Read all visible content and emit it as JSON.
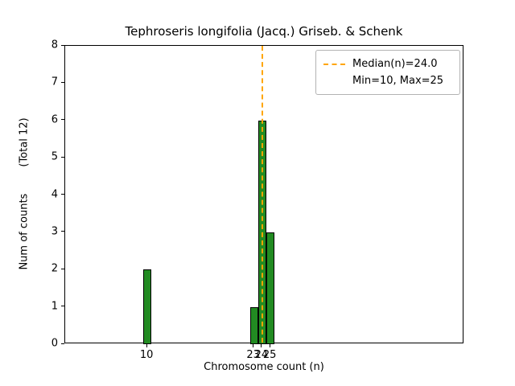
{
  "figure": {
    "title": "Tephroseris longifolia (Jacq.) Griseb. & Schenk",
    "xlabel": "Chromosome count (n)",
    "ylabel": "Num of counts        (Total 12)"
  },
  "legend": {
    "items": [
      {
        "label": "Median(n)=24.0",
        "has_line": true,
        "line_color": "#FFA500",
        "line_style": "dashed"
      },
      {
        "label": "Min=10, Max=25",
        "has_line": false
      }
    ]
  },
  "chart_data": {
    "type": "bar",
    "title": "Tephroseris longifolia (Jacq.) Griseb. & Schenk",
    "xlabel": "Chromosome count (n)",
    "ylabel": "Num of counts (Total 12)",
    "x": [
      10,
      23,
      24,
      25
    ],
    "values": [
      2,
      1,
      6,
      3
    ],
    "total_counts": 12,
    "median": 24.0,
    "min": 10,
    "max": 25,
    "bar_width": 1,
    "bar_color": "#228B22",
    "bar_edge_color": "#000000",
    "median_line_color": "#FFA500",
    "xlim": [
      0,
      48.6
    ],
    "ylim": [
      0,
      8
    ],
    "xticks": [
      10,
      23,
      24,
      25
    ],
    "yticks": [
      0,
      1,
      2,
      3,
      4,
      5,
      6,
      7,
      8
    ],
    "grid": false,
    "legend_position": "upper right"
  }
}
